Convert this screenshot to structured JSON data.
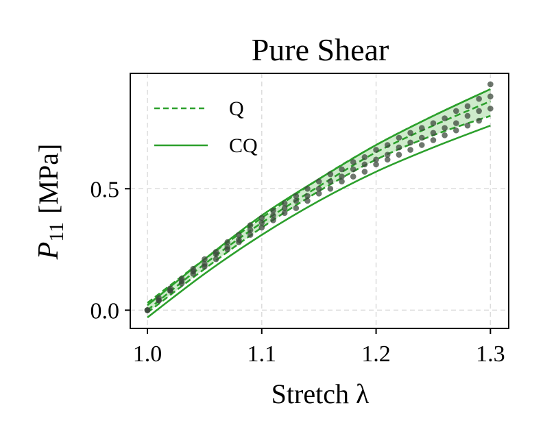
{
  "chart_data": {
    "type": "line",
    "title": "Pure Shear",
    "xlabel": "Stretch λ",
    "ylabel": "P₁₁ [MPa]",
    "ylabel_main": "P",
    "ylabel_sub": "11",
    "ylabel_unit": "[MPa]",
    "xlim": [
      0.985,
      1.316
    ],
    "ylim": [
      -0.075,
      0.975
    ],
    "x_ticks": [
      1.0,
      1.1,
      1.2,
      1.3
    ],
    "x_tick_labels": [
      "1.0",
      "1.1",
      "1.2",
      "1.3"
    ],
    "y_ticks": [
      0.0,
      0.5
    ],
    "y_tick_labels": [
      "0.0",
      "0.5"
    ],
    "grid": true,
    "legend_position": "top-left",
    "colors": {
      "model": "#2ca02c",
      "band": "#a6dba0",
      "data_points": "#3d4a3d"
    },
    "legend": [
      {
        "label": "Q",
        "style": "dashed"
      },
      {
        "label": "CQ",
        "style": "solid"
      }
    ],
    "band": {
      "x": [
        1.0,
        1.05,
        1.1,
        1.15,
        1.2,
        1.25,
        1.3
      ],
      "lower": [
        -0.01,
        0.17,
        0.34,
        0.49,
        0.62,
        0.72,
        0.8
      ],
      "upper": [
        0.03,
        0.21,
        0.38,
        0.54,
        0.68,
        0.8,
        0.91
      ]
    },
    "series": [
      {
        "name": "Q",
        "style": "dashed",
        "x": [
          1.0,
          1.05,
          1.1,
          1.15,
          1.2,
          1.25,
          1.3
        ],
        "values": [
          0.0,
          0.19,
          0.36,
          0.51,
          0.65,
          0.76,
          0.86
        ]
      },
      {
        "name": "Q (upper)",
        "style": "dashed",
        "x": [
          1.0,
          1.05,
          1.1,
          1.15,
          1.2,
          1.25,
          1.3
        ],
        "values": [
          0.03,
          0.21,
          0.38,
          0.54,
          0.68,
          0.8,
          0.91
        ]
      },
      {
        "name": "Q (lower)",
        "style": "dashed",
        "x": [
          1.0,
          1.05,
          1.1,
          1.15,
          1.2,
          1.25,
          1.3
        ],
        "values": [
          -0.01,
          0.17,
          0.34,
          0.49,
          0.62,
          0.72,
          0.8
        ]
      },
      {
        "name": "CQ",
        "style": "solid",
        "x": [
          1.0,
          1.05,
          1.1,
          1.15,
          1.2,
          1.25,
          1.3
        ],
        "values": [
          0.02,
          0.21,
          0.39,
          0.54,
          0.68,
          0.8,
          0.91
        ]
      },
      {
        "name": "CQ (lower)",
        "style": "solid",
        "x": [
          1.0,
          1.05,
          1.1,
          1.15,
          1.2,
          1.25,
          1.3
        ],
        "values": [
          -0.03,
          0.15,
          0.31,
          0.45,
          0.57,
          0.67,
          0.76
        ]
      }
    ],
    "scatter_series": [
      {
        "name": "data upper",
        "x": [
          1.0,
          1.01,
          1.02,
          1.03,
          1.04,
          1.05,
          1.06,
          1.07,
          1.08,
          1.09,
          1.1,
          1.11,
          1.12,
          1.13,
          1.14,
          1.15,
          1.16,
          1.17,
          1.18,
          1.19,
          1.2,
          1.21,
          1.22,
          1.23,
          1.24,
          1.25,
          1.26,
          1.27,
          1.28,
          1.29,
          1.3
        ],
        "values": [
          0.0,
          0.05,
          0.09,
          0.13,
          0.17,
          0.21,
          0.24,
          0.28,
          0.31,
          0.35,
          0.38,
          0.41,
          0.44,
          0.47,
          0.5,
          0.53,
          0.56,
          0.58,
          0.61,
          0.63,
          0.66,
          0.68,
          0.71,
          0.73,
          0.75,
          0.77,
          0.79,
          0.82,
          0.84,
          0.87,
          0.93
        ]
      },
      {
        "name": "data middle",
        "x": [
          1.0,
          1.01,
          1.02,
          1.03,
          1.04,
          1.05,
          1.06,
          1.07,
          1.08,
          1.09,
          1.1,
          1.11,
          1.12,
          1.13,
          1.14,
          1.15,
          1.16,
          1.17,
          1.18,
          1.19,
          1.2,
          1.21,
          1.22,
          1.23,
          1.24,
          1.25,
          1.26,
          1.27,
          1.28,
          1.29,
          1.3
        ],
        "values": [
          0.0,
          0.04,
          0.08,
          0.12,
          0.16,
          0.19,
          0.23,
          0.26,
          0.29,
          0.33,
          0.36,
          0.39,
          0.42,
          0.45,
          0.47,
          0.5,
          0.53,
          0.55,
          0.58,
          0.6,
          0.62,
          0.64,
          0.67,
          0.69,
          0.71,
          0.73,
          0.75,
          0.77,
          0.8,
          0.82,
          0.88
        ]
      },
      {
        "name": "data lower",
        "x": [
          1.0,
          1.01,
          1.02,
          1.03,
          1.04,
          1.05,
          1.06,
          1.07,
          1.08,
          1.09,
          1.1,
          1.11,
          1.12,
          1.13,
          1.14,
          1.15,
          1.16,
          1.17,
          1.18,
          1.19,
          1.2,
          1.21,
          1.22,
          1.23,
          1.24,
          1.25,
          1.26,
          1.27,
          1.28,
          1.29,
          1.3
        ],
        "values": [
          0.0,
          0.04,
          0.08,
          0.11,
          0.15,
          0.18,
          0.21,
          0.25,
          0.28,
          0.31,
          0.34,
          0.37,
          0.4,
          0.42,
          0.45,
          0.48,
          0.5,
          0.53,
          0.55,
          0.57,
          0.6,
          0.62,
          0.64,
          0.66,
          0.68,
          0.7,
          0.72,
          0.74,
          0.76,
          0.78,
          0.83
        ]
      }
    ]
  }
}
